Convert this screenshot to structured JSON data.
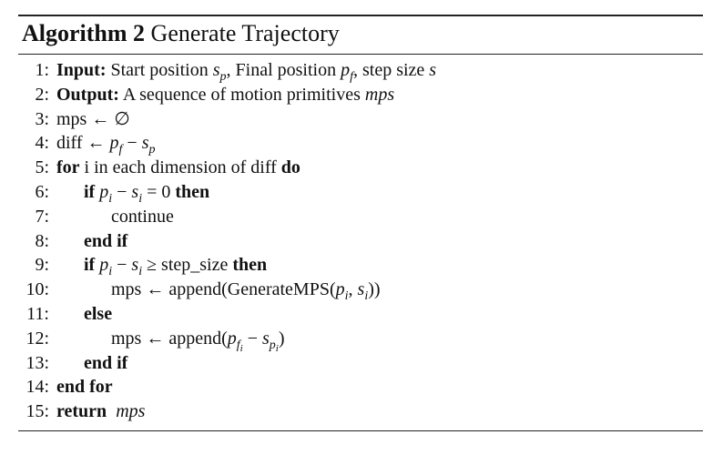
{
  "algorithm": {
    "label": "Algorithm 2",
    "title": "Generate Trajectory"
  },
  "lines": [
    {
      "num": "1:",
      "keyword": "Input:",
      "text": "Start position",
      "s": "s",
      "p": "p",
      "comma1": ", Final position",
      "pf_p": "p",
      "pf_f": "f",
      "comma2": ", step size",
      "var_s": "s"
    },
    {
      "num": "2:",
      "keyword": "Output:",
      "text": "A sequence of motion primitives",
      "var": "mps"
    },
    {
      "num": "3:",
      "text": "mps ← ∅"
    },
    {
      "num": "4:",
      "text": "diff ←",
      "p": "p",
      "f": "f",
      "minus": "−",
      "s": "s",
      "sp": "p"
    },
    {
      "num": "5:",
      "keyword": "for",
      "text": "i in each dimension of diff",
      "keyword2": "do"
    },
    {
      "num": "6:",
      "keyword": "if",
      "p": "p",
      "i1": "i",
      "minus": "−",
      "s": "s",
      "i2": "i",
      "rest": "= 0",
      "keyword2": "then"
    },
    {
      "num": "7:",
      "text": "continue"
    },
    {
      "num": "8:",
      "keyword": "end if"
    },
    {
      "num": "9:",
      "keyword": "if",
      "p": "p",
      "i1": "i",
      "minus": "−",
      "s": "s",
      "i2": "i",
      "rest": "≥ step_size",
      "keyword2": "then"
    },
    {
      "num": "10:",
      "text": "mps ← append(GenerateMPS(",
      "p": "p",
      "i1": "i",
      "sep": ",",
      "s": "s",
      "i2": "i",
      "close": "))"
    },
    {
      "num": "11:",
      "keyword": "else"
    },
    {
      "num": "12:",
      "text": "mps ← append(",
      "p": "p",
      "f": "f",
      "fi": "i",
      "minus": "−",
      "s": "s",
      "sp": "p",
      "spi": "i",
      "close": ")"
    },
    {
      "num": "13:",
      "keyword": "end if"
    },
    {
      "num": "14:",
      "keyword": "end for"
    },
    {
      "num": "15:",
      "keyword": "return",
      "var": "mps"
    }
  ]
}
